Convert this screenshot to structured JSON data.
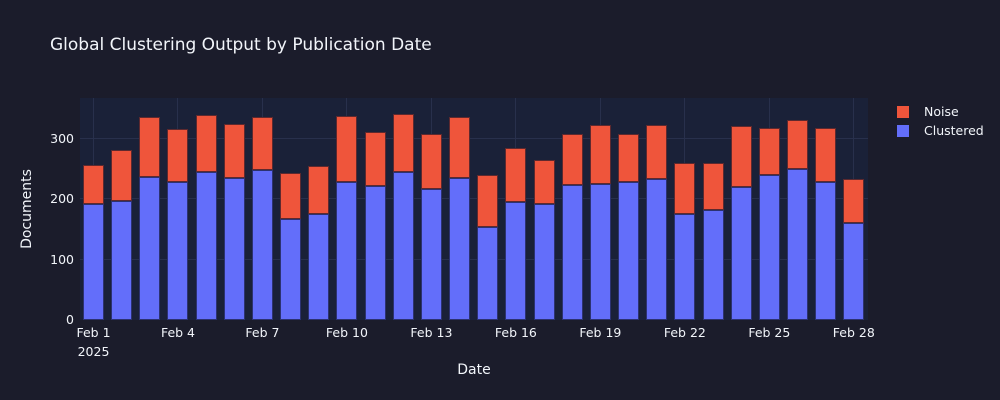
{
  "title": "Global Clustering Output by Publication Date",
  "colors": {
    "noise": "#EF553B",
    "clustered": "#636EFA",
    "paper_bg": "#1b1c2b",
    "plot_bg": "#1a2138",
    "grid": "#28304c",
    "text": "#f2f5fa"
  },
  "legend_items": [
    {
      "label": "Noise",
      "color_key": "noise"
    },
    {
      "label": "Clustered",
      "color_key": "clustered"
    }
  ],
  "chart_data": {
    "type": "bar",
    "stacked": true,
    "title": "Global Clustering Output by Publication Date",
    "xlabel": "Date",
    "ylabel": "Documents",
    "legend_position": "right",
    "grid": true,
    "categories": [
      "Feb 1",
      "Feb 2",
      "Feb 3",
      "Feb 4",
      "Feb 5",
      "Feb 6",
      "Feb 7",
      "Feb 8",
      "Feb 9",
      "Feb 10",
      "Feb 11",
      "Feb 12",
      "Feb 13",
      "Feb 14",
      "Feb 15",
      "Feb 16",
      "Feb 17",
      "Feb 18",
      "Feb 19",
      "Feb 20",
      "Feb 21",
      "Feb 22",
      "Feb 23",
      "Feb 24",
      "Feb 25",
      "Feb 26",
      "Feb 27",
      "Feb 28"
    ],
    "series": [
      {
        "name": "Clustered",
        "color_key": "clustered",
        "values": [
          192,
          197,
          237,
          228,
          245,
          236,
          249,
          167,
          176,
          228,
          222,
          246,
          217,
          236,
          155,
          195,
          192,
          223,
          225,
          229,
          233,
          175,
          182,
          220,
          240,
          250,
          228,
          161
        ]
      },
      {
        "name": "Noise",
        "color_key": "noise",
        "values": [
          65,
          85,
          100,
          88,
          95,
          89,
          87,
          77,
          79,
          110,
          90,
          96,
          91,
          100,
          86,
          90,
          74,
          85,
          98,
          80,
          91,
          85,
          79,
          102,
          78,
          82,
          90,
          73
        ]
      }
    ],
    "ylim": [
      0,
      368
    ],
    "y_ticks": [
      0,
      100,
      200,
      300
    ],
    "x_ticks": [
      {
        "index": 0,
        "label": "Feb 1",
        "sub": "2025"
      },
      {
        "index": 3,
        "label": "Feb 4"
      },
      {
        "index": 6,
        "label": "Feb 7"
      },
      {
        "index": 9,
        "label": "Feb 10"
      },
      {
        "index": 12,
        "label": "Feb 13"
      },
      {
        "index": 15,
        "label": "Feb 16"
      },
      {
        "index": 18,
        "label": "Feb 19"
      },
      {
        "index": 21,
        "label": "Feb 22"
      },
      {
        "index": 24,
        "label": "Feb 25"
      },
      {
        "index": 27,
        "label": "Feb 28"
      }
    ]
  }
}
